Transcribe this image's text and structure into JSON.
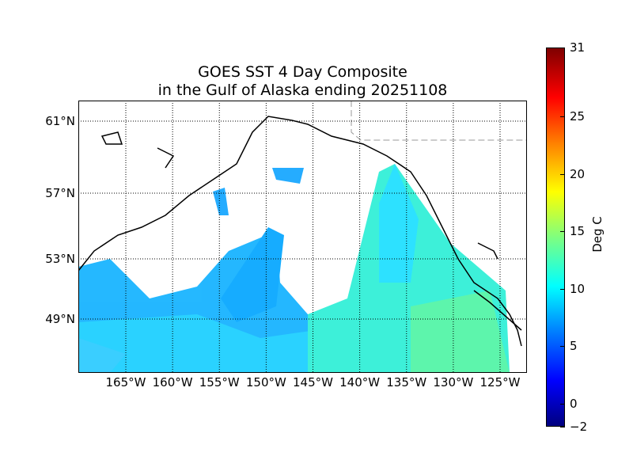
{
  "title_line1": "GOES SST 4 Day Composite",
  "title_line2": "in the Gulf of Alaska ending 20251108",
  "map": {
    "lat_labels": [
      {
        "text": "61°N",
        "value": 61
      },
      {
        "text": "57°N",
        "value": 57
      },
      {
        "text": "53°N",
        "value": 53
      },
      {
        "text": "49°N",
        "value": 49
      }
    ],
    "lon_labels": [
      {
        "text": "165°W",
        "value": -165
      },
      {
        "text": "160°W",
        "value": -160
      },
      {
        "text": "155°W",
        "value": -155
      },
      {
        "text": "150°W",
        "value": -150
      },
      {
        "text": "145°W",
        "value": -145
      },
      {
        "text": "140°W",
        "value": -140
      },
      {
        "text": "135°W",
        "value": -135
      },
      {
        "text": "130°W",
        "value": -130
      },
      {
        "text": "125°W",
        "value": -125
      }
    ]
  },
  "colorbar": {
    "label": "Deg C",
    "min": -2,
    "max": 31,
    "ticks": [
      {
        "text": "31",
        "value": 31
      },
      {
        "text": "25",
        "value": 25
      },
      {
        "text": "20",
        "value": 20
      },
      {
        "text": "15",
        "value": 15
      },
      {
        "text": "10",
        "value": 10
      },
      {
        "text": "5",
        "value": 5
      },
      {
        "text": "0",
        "value": 0
      },
      {
        "text": "−2",
        "value": -2
      }
    ],
    "colormap": "jet"
  }
}
